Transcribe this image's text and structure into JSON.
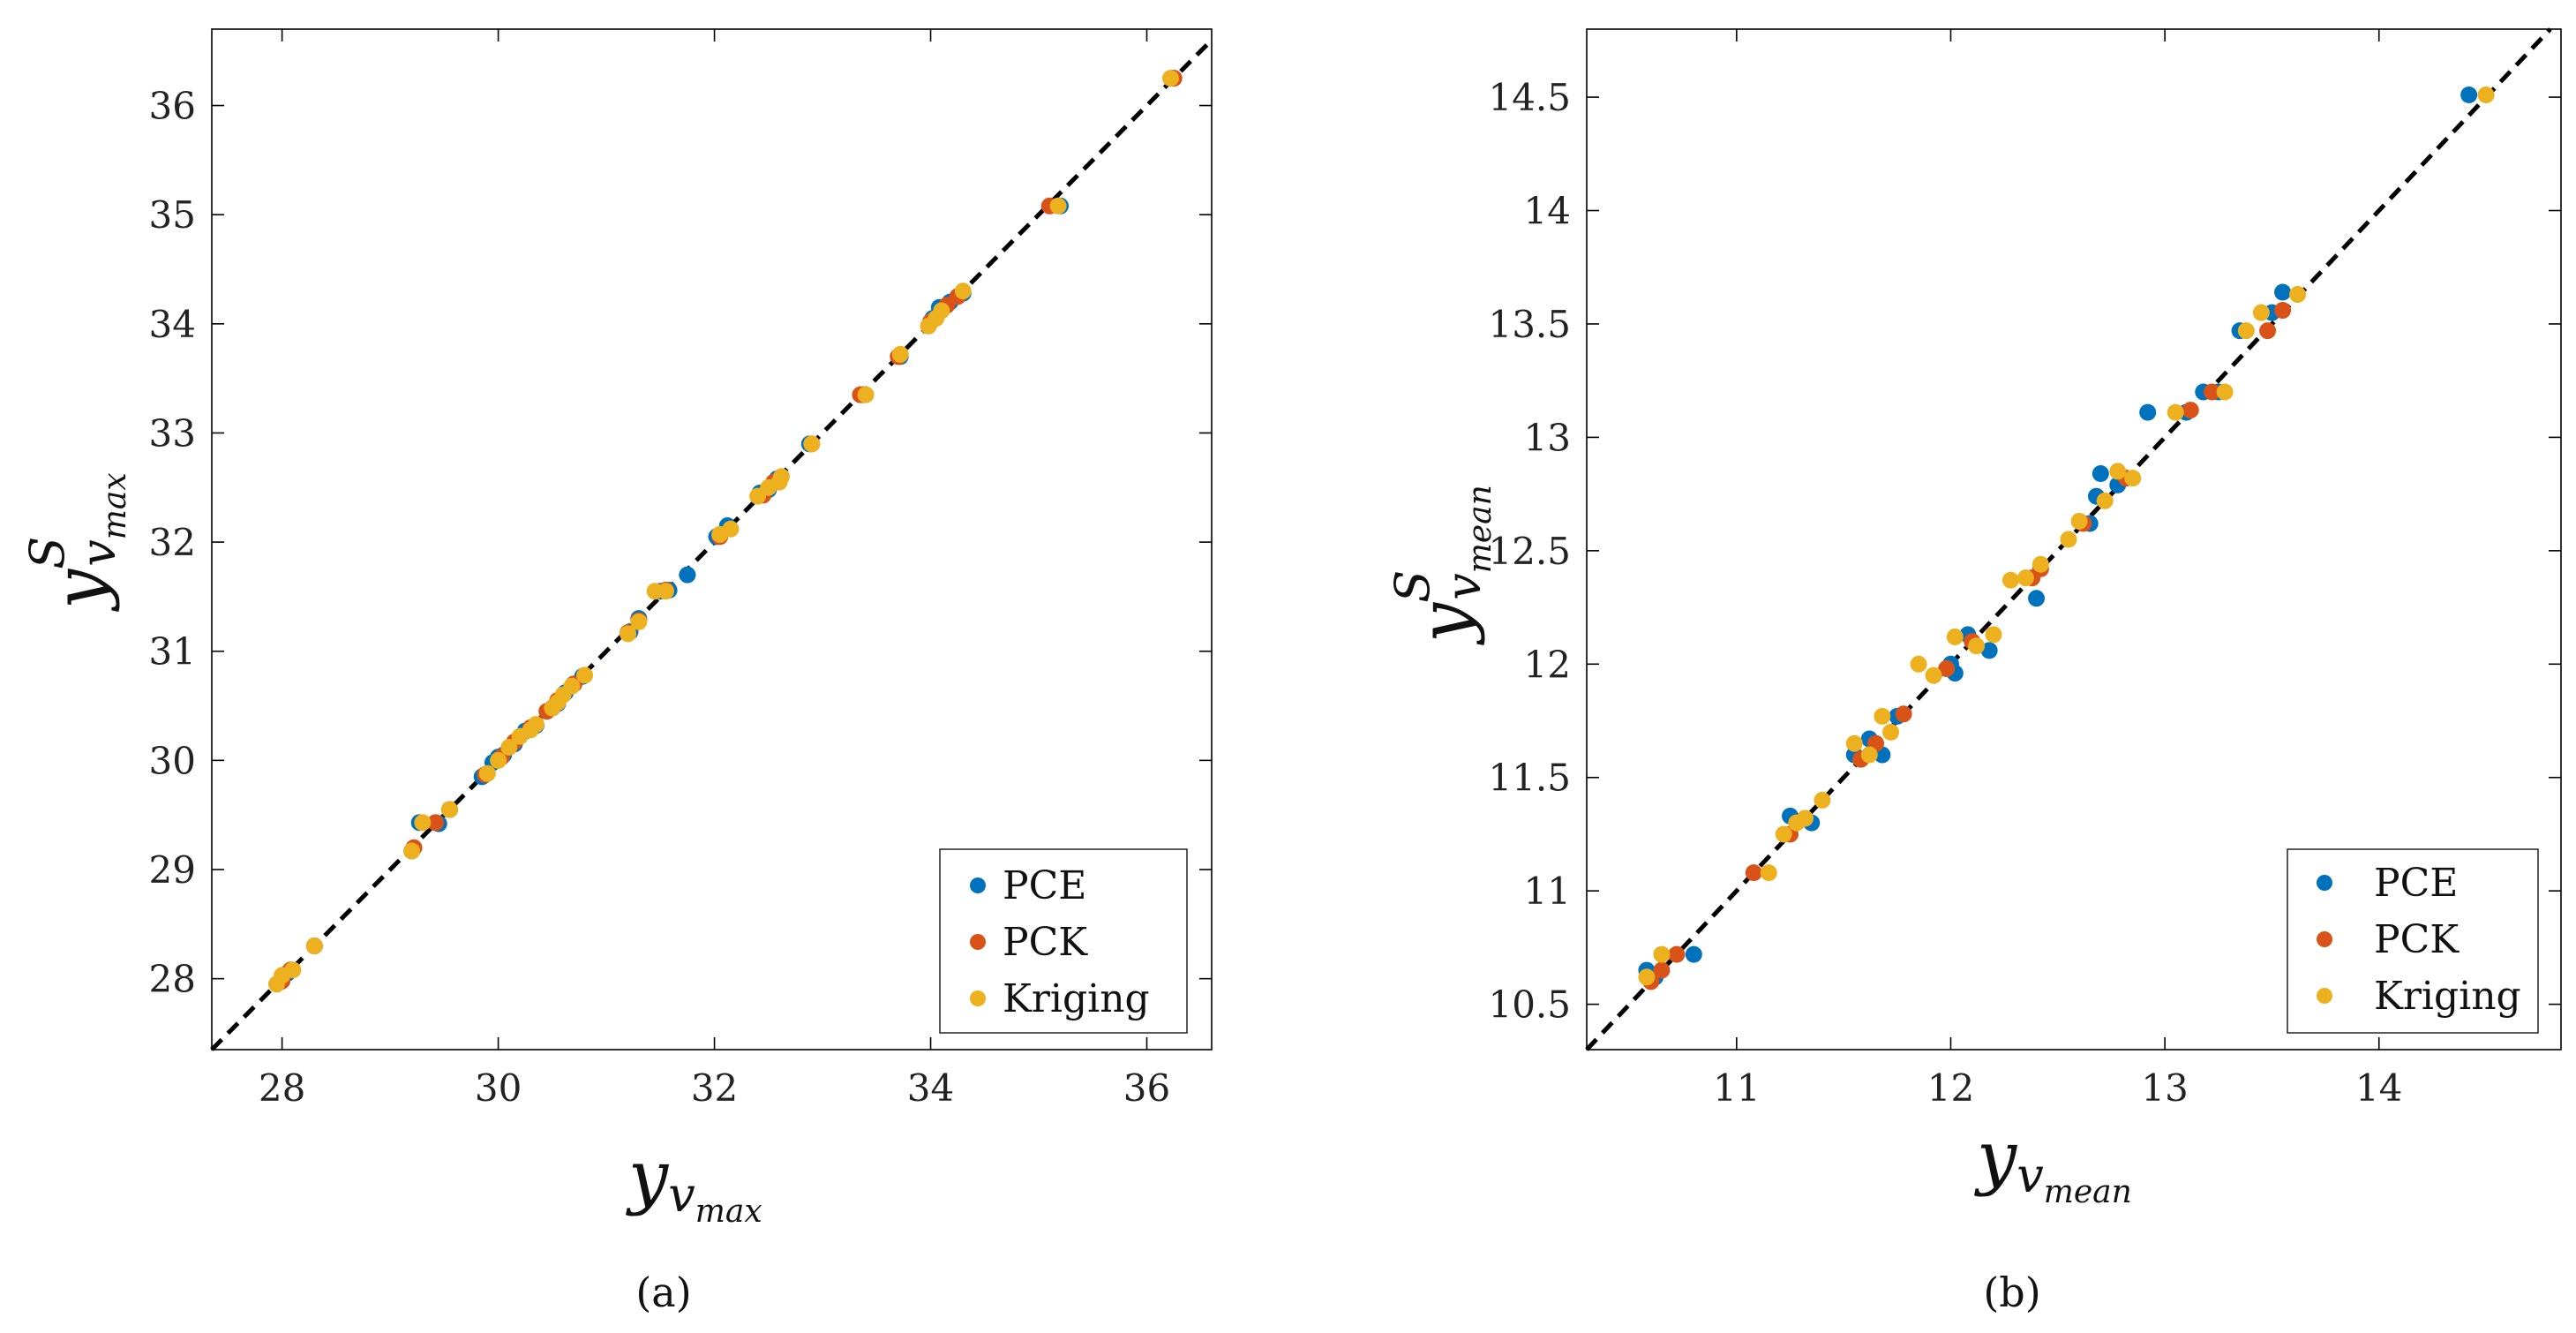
{
  "chart_data": [
    {
      "type": "scatter",
      "caption": "(a)",
      "xlabel": {
        "main": "y",
        "sub": "v",
        "subsub": "max"
      },
      "ylabel": {
        "main": "y",
        "sup": "S",
        "sub": "v",
        "subsub": "max"
      },
      "xlim": [
        27.35,
        36.6
      ],
      "ylim": [
        27.35,
        36.7
      ],
      "xticks": [
        28,
        30,
        32,
        34,
        36
      ],
      "yticks": [
        28,
        29,
        30,
        31,
        32,
        33,
        34,
        35,
        36
      ],
      "legend": {
        "position": "bottom-right"
      },
      "reference_line": {
        "style": "dashed",
        "slope": 1,
        "intercept": 0
      },
      "series": [
        {
          "name": "PCE",
          "color": "#0072BD",
          "x": [
            27.98,
            28.05,
            28.3,
            29.2,
            29.27,
            29.45,
            29.55,
            29.85,
            29.95,
            30.0,
            30.05,
            30.15,
            30.25,
            30.35,
            30.5,
            30.55,
            30.62,
            30.7,
            30.78,
            31.22,
            31.3,
            31.5,
            31.58,
            31.75,
            32.02,
            32.12,
            32.42,
            32.5,
            32.58,
            32.88,
            33.38,
            33.72,
            34.02,
            34.08,
            34.18,
            34.3,
            35.2,
            36.25
          ],
          "y": [
            27.97,
            28.05,
            28.3,
            29.17,
            29.43,
            29.42,
            29.55,
            29.85,
            29.98,
            30.03,
            30.05,
            30.15,
            30.27,
            30.32,
            30.48,
            30.52,
            30.62,
            30.7,
            30.77,
            31.18,
            31.3,
            31.55,
            31.56,
            31.7,
            32.05,
            32.15,
            32.45,
            32.48,
            32.58,
            32.9,
            33.35,
            33.7,
            34.05,
            34.15,
            34.2,
            34.28,
            35.08,
            36.25
          ]
        },
        {
          "name": "PCK",
          "color": "#D95319",
          "x": [
            28.0,
            28.08,
            28.3,
            29.22,
            29.42,
            29.55,
            29.88,
            30.03,
            30.15,
            30.3,
            30.45,
            30.55,
            30.7,
            31.2,
            31.3,
            31.55,
            32.05,
            32.45,
            32.55,
            32.9,
            33.35,
            33.7,
            34.0,
            34.15,
            34.25,
            35.1,
            36.25
          ],
          "y": [
            27.98,
            28.08,
            28.3,
            29.2,
            29.43,
            29.55,
            29.87,
            30.03,
            30.17,
            30.3,
            30.45,
            30.55,
            30.7,
            31.17,
            31.28,
            31.56,
            32.05,
            32.43,
            32.55,
            32.9,
            33.35,
            33.7,
            34.02,
            34.17,
            34.25,
            35.08,
            36.25
          ]
        },
        {
          "name": "Kriging",
          "color": "#EDB120",
          "x": [
            27.95,
            28.0,
            28.1,
            28.3,
            29.2,
            29.3,
            29.55,
            29.9,
            30.0,
            30.1,
            30.2,
            30.3,
            30.35,
            30.5,
            30.55,
            30.6,
            30.68,
            30.8,
            31.2,
            31.3,
            31.45,
            31.55,
            32.05,
            32.15,
            32.4,
            32.5,
            32.6,
            32.62,
            32.9,
            33.4,
            33.72,
            33.98,
            34.05,
            34.1,
            34.3,
            35.18,
            36.22
          ],
          "y": [
            27.95,
            28.03,
            28.08,
            28.3,
            29.17,
            29.43,
            29.55,
            29.88,
            30.0,
            30.12,
            30.22,
            30.28,
            30.33,
            30.48,
            30.53,
            30.6,
            30.68,
            30.78,
            31.16,
            31.27,
            31.55,
            31.55,
            32.07,
            32.12,
            32.42,
            32.5,
            32.55,
            32.6,
            32.9,
            33.35,
            33.72,
            33.98,
            34.05,
            34.12,
            34.3,
            35.08,
            36.25
          ]
        }
      ]
    },
    {
      "type": "scatter",
      "caption": "(b)",
      "xlabel": {
        "main": "y",
        "sub": "v",
        "subsub": "mean"
      },
      "ylabel": {
        "main": "y",
        "sup": "S",
        "sub": "v",
        "subsub": "mean"
      },
      "xlim": [
        10.3,
        14.85
      ],
      "ylim": [
        10.3,
        14.8
      ],
      "xticks": [
        11,
        12,
        13,
        14
      ],
      "yticks": [
        10.5,
        11,
        11.5,
        12,
        12.5,
        13,
        13.5,
        14,
        14.5
      ],
      "legend": {
        "position": "bottom-right"
      },
      "reference_line": {
        "style": "dashed",
        "slope": 1,
        "intercept": 0
      },
      "series": [
        {
          "name": "PCE",
          "color": "#0072BD",
          "x": [
            10.58,
            10.62,
            10.8,
            11.25,
            11.35,
            11.55,
            11.62,
            11.68,
            11.75,
            12.0,
            12.02,
            12.08,
            12.18,
            12.4,
            12.65,
            12.68,
            12.7,
            12.78,
            12.92,
            13.1,
            13.18,
            13.25,
            13.35,
            13.5,
            13.55,
            14.42
          ],
          "y": [
            10.65,
            10.62,
            10.72,
            11.33,
            11.3,
            11.6,
            11.67,
            11.6,
            11.77,
            12.0,
            11.96,
            12.13,
            12.06,
            12.29,
            12.62,
            12.74,
            12.84,
            12.79,
            13.11,
            13.11,
            13.2,
            13.2,
            13.47,
            13.55,
            13.64,
            14.51
          ]
        },
        {
          "name": "PCK",
          "color": "#D95319",
          "x": [
            10.6,
            10.65,
            10.72,
            11.08,
            11.25,
            11.32,
            11.58,
            11.65,
            11.78,
            11.98,
            12.1,
            12.38,
            12.42,
            12.62,
            12.82,
            13.12,
            13.22,
            13.48,
            13.55
          ],
          "y": [
            10.6,
            10.65,
            10.72,
            11.08,
            11.25,
            11.32,
            11.58,
            11.65,
            11.78,
            11.98,
            12.1,
            12.38,
            12.42,
            12.62,
            12.82,
            13.12,
            13.2,
            13.47,
            13.56
          ]
        },
        {
          "name": "Kriging",
          "color": "#EDB120",
          "x": [
            10.58,
            10.65,
            11.15,
            11.22,
            11.28,
            11.32,
            11.4,
            11.55,
            11.62,
            11.68,
            11.72,
            11.85,
            11.92,
            12.02,
            12.12,
            12.2,
            12.28,
            12.35,
            12.42,
            12.55,
            12.6,
            12.72,
            12.78,
            12.85,
            13.05,
            13.28,
            13.38,
            13.45,
            13.62,
            14.5
          ],
          "y": [
            10.62,
            10.72,
            11.08,
            11.25,
            11.3,
            11.32,
            11.4,
            11.65,
            11.6,
            11.77,
            11.7,
            12.0,
            11.95,
            12.12,
            12.08,
            12.13,
            12.37,
            12.38,
            12.44,
            12.55,
            12.63,
            12.72,
            12.85,
            12.82,
            13.11,
            13.2,
            13.47,
            13.55,
            13.63,
            14.51
          ]
        }
      ]
    }
  ]
}
